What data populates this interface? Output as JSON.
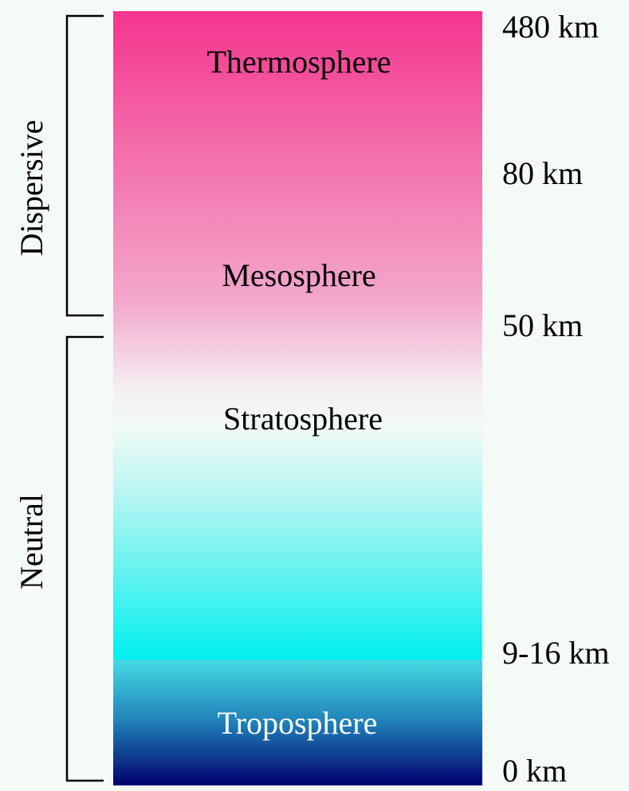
{
  "layers": [
    {
      "label": "Thermosphere"
    },
    {
      "label": "Mesosphere"
    },
    {
      "label": "Stratosphere"
    },
    {
      "label": "Troposphere"
    }
  ],
  "altitudes": [
    "480 km",
    "80 km",
    "50 km",
    "9-16 km",
    "0 km"
  ],
  "regions": [
    {
      "label": "Dispersive"
    },
    {
      "label": "Neutral"
    }
  ]
}
